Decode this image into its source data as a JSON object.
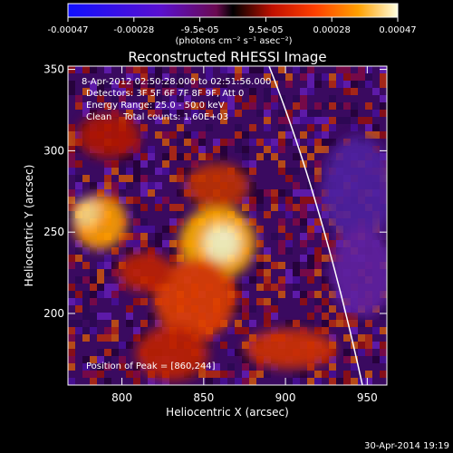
{
  "colorbar": {
    "tick_labels": [
      "-0.00047",
      "-0.00028",
      "-9.5e-05",
      "9.5e-05",
      "0.00028",
      "0.00047"
    ],
    "units_label": "(photons cm⁻² s⁻¹ asec⁻²)",
    "range": [
      -0.00047,
      0.00047
    ]
  },
  "plot": {
    "title": "Reconstructed RHESSI Image",
    "xlabel": "Heliocentric X (arcsec)",
    "ylabel": "Heliocentric Y (arcsec)",
    "x_ticks": [
      "800",
      "850",
      "900",
      "950"
    ],
    "y_ticks": [
      "200",
      "250",
      "300",
      "350"
    ],
    "xlim": [
      767,
      962
    ],
    "ylim": [
      156,
      352
    ]
  },
  "annotations": {
    "time_range": "8-Apr-2012 02:50:28.000 to 02:51:56.000",
    "detectors": "Detectors: 3F 5F 6F 7F 8F 9F, Att 0",
    "energy_range": "Energy Range: 25.0 - 50.0 keV",
    "clean_counts": "Clean    Total counts: 1.60E+03",
    "peak_position": "Position of Peak = [860,244]"
  },
  "footer": {
    "timestamp": "30-Apr-2014 19:19"
  }
}
